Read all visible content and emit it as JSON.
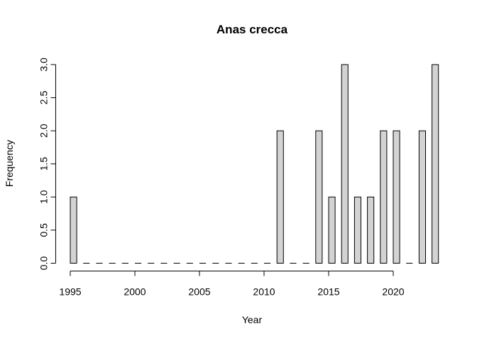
{
  "chart_data": {
    "type": "bar",
    "title": "Anas crecca",
    "xlabel": "Year",
    "ylabel": "Frequency",
    "bar_fill": "#d3d3d3",
    "xlim": [
      1995,
      2023
    ],
    "ylim": [
      0,
      3
    ],
    "grid": false,
    "legend": "none",
    "x_ticks": [
      "1995",
      "2000",
      "2005",
      "2010",
      "2015",
      "2020"
    ],
    "y_ticks": [
      "0.0",
      "0.5",
      "1.0",
      "1.5",
      "2.0",
      "2.5",
      "3.0"
    ],
    "bins": [
      {
        "x": 1995,
        "value": 1
      },
      {
        "x": 1996,
        "value": 0
      },
      {
        "x": 1997,
        "value": 0
      },
      {
        "x": 1998,
        "value": 0
      },
      {
        "x": 1999,
        "value": 0
      },
      {
        "x": 2000,
        "value": 0
      },
      {
        "x": 2001,
        "value": 0
      },
      {
        "x": 2002,
        "value": 0
      },
      {
        "x": 2003,
        "value": 0
      },
      {
        "x": 2004,
        "value": 0
      },
      {
        "x": 2005,
        "value": 0
      },
      {
        "x": 2006,
        "value": 0
      },
      {
        "x": 2007,
        "value": 0
      },
      {
        "x": 2008,
        "value": 0
      },
      {
        "x": 2009,
        "value": 0
      },
      {
        "x": 2010,
        "value": 0
      },
      {
        "x": 2011,
        "value": 2
      },
      {
        "x": 2012,
        "value": 0
      },
      {
        "x": 2013,
        "value": 0
      },
      {
        "x": 2014,
        "value": 2
      },
      {
        "x": 2015,
        "value": 1
      },
      {
        "x": 2016,
        "value": 3
      },
      {
        "x": 2017,
        "value": 1
      },
      {
        "x": 2018,
        "value": 1
      },
      {
        "x": 2019,
        "value": 2
      },
      {
        "x": 2020,
        "value": 2
      },
      {
        "x": 2021,
        "value": 0
      },
      {
        "x": 2022,
        "value": 2
      },
      {
        "x": 2023,
        "value": 3
      }
    ]
  }
}
